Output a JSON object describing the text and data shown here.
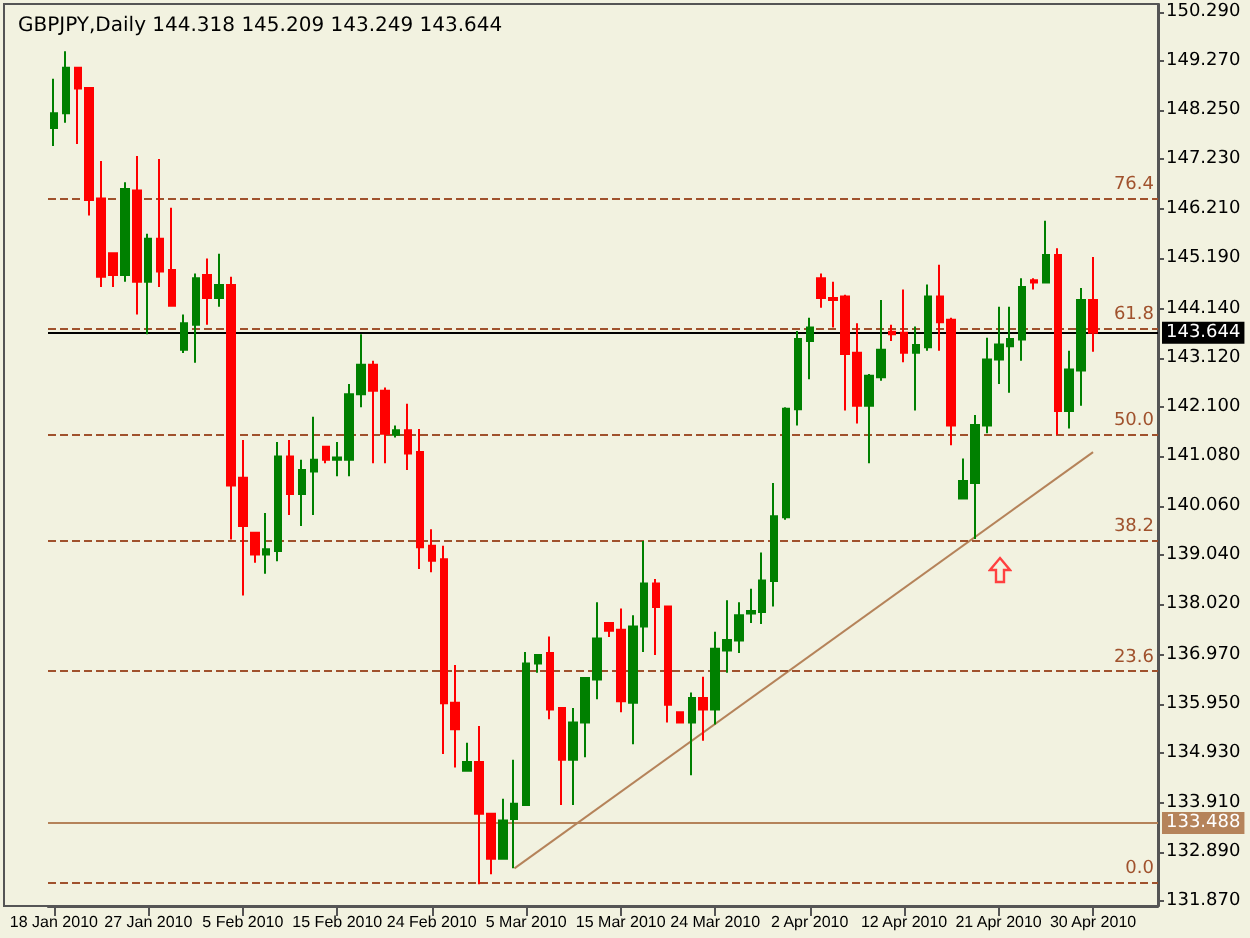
{
  "chart_data": {
    "type": "candlestick",
    "title": "GBPJPY,Daily 144.318 145.209 143.249 143.644",
    "categories": [
      "18 Jan 2010",
      null,
      null,
      null,
      null,
      null,
      null,
      null,
      "27 Jan 2010",
      null,
      null,
      null,
      null,
      null,
      null,
      null,
      "5 Feb 2010",
      null,
      null,
      null,
      null,
      null,
      null,
      null,
      "15 Feb 2010",
      null,
      null,
      null,
      null,
      null,
      null,
      null,
      "24 Feb 2010",
      null,
      null,
      null,
      null,
      null,
      null,
      null,
      "5 Mar 2010",
      null,
      null,
      null,
      null,
      null,
      null,
      null,
      "15 Mar 2010",
      null,
      null,
      null,
      null,
      null,
      null,
      null,
      "24 Mar 2010",
      null,
      null,
      null,
      null,
      null,
      null,
      null,
      "2 Apr 2010",
      null,
      null,
      null,
      null,
      null,
      null,
      null,
      "12 Apr 2010",
      null,
      null,
      null,
      null,
      null,
      null,
      null,
      "21 Apr 2010",
      null,
      null,
      null,
      null,
      null,
      null,
      null,
      "30 Apr 2010"
    ],
    "ohlc": [
      [
        147.88,
        148.9,
        147.51,
        148.19
      ],
      [
        148.19,
        149.47,
        147.99,
        149.13
      ],
      [
        149.13,
        149.13,
        147.55,
        148.7
      ],
      [
        148.71,
        148.71,
        146.07,
        146.39
      ],
      [
        146.42,
        147.2,
        144.59,
        144.8
      ],
      [
        145.29,
        145.29,
        144.59,
        144.84
      ],
      [
        144.84,
        146.76,
        144.7,
        146.62
      ],
      [
        146.59,
        147.3,
        144.02,
        144.7
      ],
      [
        144.7,
        145.69,
        143.61,
        145.59
      ],
      [
        145.59,
        147.24,
        144.59,
        144.91
      ],
      [
        144.94,
        146.23,
        144.2,
        144.2
      ],
      [
        143.29,
        144.02,
        143.22,
        143.84
      ],
      [
        143.81,
        144.87,
        143.02,
        144.77
      ],
      [
        144.84,
        145.18,
        143.81,
        144.36
      ],
      [
        144.36,
        145.28,
        144.18,
        144.63
      ],
      [
        144.63,
        144.8,
        139.36,
        140.48
      ],
      [
        140.64,
        141.42,
        138.2,
        139.64
      ],
      [
        139.5,
        139.5,
        138.88,
        139.05
      ],
      [
        139.05,
        139.91,
        138.65,
        139.16
      ],
      [
        139.12,
        141.38,
        138.91,
        141.08
      ],
      [
        141.08,
        141.42,
        139.87,
        140.3
      ],
      [
        140.3,
        141.01,
        139.64,
        140.8
      ],
      [
        140.77,
        141.9,
        139.87,
        141.01
      ],
      [
        141.28,
        141.28,
        140.94,
        141.01
      ],
      [
        141.01,
        141.38,
        140.67,
        141.06
      ],
      [
        141.01,
        142.58,
        140.67,
        142.37
      ],
      [
        142.37,
        143.61,
        142.1,
        142.98
      ],
      [
        142.98,
        143.06,
        140.94,
        142.44
      ],
      [
        142.44,
        142.51,
        140.94,
        141.55
      ],
      [
        141.53,
        141.72,
        141.47,
        141.62
      ],
      [
        141.62,
        142.17,
        140.8,
        141.14
      ],
      [
        141.17,
        141.65,
        138.75,
        139.2
      ],
      [
        139.23,
        139.57,
        138.68,
        138.92
      ],
      [
        138.95,
        139.23,
        134.92,
        135.97
      ],
      [
        135.98,
        136.76,
        134.64,
        135.43
      ],
      [
        134.57,
        135.15,
        134.55,
        134.75
      ],
      [
        134.75,
        135.5,
        132.22,
        133.68
      ],
      [
        133.68,
        133.68,
        132.43,
        132.75
      ],
      [
        132.75,
        133.99,
        132.75,
        133.54
      ],
      [
        133.57,
        134.8,
        132.55,
        133.89
      ],
      [
        133.86,
        137.03,
        133.85,
        136.79
      ],
      [
        136.79,
        136.97,
        136.6,
        136.97
      ],
      [
        137.01,
        137.35,
        135.64,
        135.84
      ],
      [
        135.87,
        135.87,
        133.86,
        134.8
      ],
      [
        134.8,
        135.87,
        133.86,
        135.57
      ],
      [
        135.57,
        136.49,
        134.85,
        136.49
      ],
      [
        136.46,
        138.06,
        136.05,
        137.31
      ],
      [
        137.63,
        137.63,
        137.34,
        137.47
      ],
      [
        137.49,
        137.93,
        135.78,
        136.01
      ],
      [
        135.98,
        137.79,
        135.12,
        137.56
      ],
      [
        137.56,
        139.33,
        137.03,
        138.45
      ],
      [
        138.45,
        138.54,
        136.97,
        137.96
      ],
      [
        137.97,
        137.97,
        135.57,
        135.94
      ],
      [
        135.78,
        135.78,
        135.57,
        135.57
      ],
      [
        135.57,
        136.19,
        134.48,
        136.08
      ],
      [
        136.08,
        136.52,
        135.19,
        135.84
      ],
      [
        135.84,
        137.45,
        135.53,
        137.1
      ],
      [
        137.06,
        138.1,
        136.6,
        137.28
      ],
      [
        137.27,
        138.06,
        137.01,
        137.79
      ],
      [
        137.83,
        138.34,
        137.63,
        137.88
      ],
      [
        137.86,
        139.09,
        137.61,
        138.51
      ],
      [
        138.5,
        140.53,
        137.97,
        139.84
      ],
      [
        139.82,
        142.1,
        139.77,
        142.07
      ],
      [
        142.06,
        143.68,
        141.72,
        143.51
      ],
      [
        143.47,
        143.95,
        142.68,
        143.75
      ],
      [
        144.77,
        144.87,
        144.16,
        144.36
      ],
      [
        144.36,
        144.7,
        143.75,
        144.32
      ],
      [
        144.39,
        144.43,
        142.03,
        143.2
      ],
      [
        143.23,
        143.84,
        141.76,
        142.13
      ],
      [
        142.13,
        142.79,
        140.94,
        142.75
      ],
      [
        142.72,
        144.32,
        142.65,
        143.29
      ],
      [
        143.66,
        143.81,
        143.47,
        143.61
      ],
      [
        143.64,
        144.54,
        143.03,
        143.23
      ],
      [
        143.23,
        143.77,
        142.03,
        143.39
      ],
      [
        143.34,
        144.64,
        143.27,
        144.39
      ],
      [
        144.39,
        145.05,
        143.27,
        143.86
      ],
      [
        143.91,
        143.95,
        141.31,
        141.72
      ],
      [
        140.21,
        141.04,
        140.21,
        140.57
      ],
      [
        140.53,
        141.94,
        139.37,
        141.73
      ],
      [
        141.72,
        143.54,
        141.56,
        143.09
      ],
      [
        143.09,
        144.18,
        142.58,
        143.4
      ],
      [
        143.36,
        144.18,
        142.4,
        143.51
      ],
      [
        143.5,
        144.77,
        143.06,
        144.59
      ],
      [
        144.73,
        144.77,
        144.54,
        144.68
      ],
      [
        144.68,
        145.96,
        144.68,
        145.25
      ],
      [
        145.25,
        145.39,
        141.53,
        142.02
      ],
      [
        142.02,
        143.27,
        141.66,
        142.88
      ],
      [
        142.86,
        144.57,
        142.13,
        144.32
      ],
      [
        144.318,
        145.209,
        143.249,
        143.644
      ]
    ],
    "colors": [
      "#008000",
      "#008000",
      "#ff0000",
      "#ff0000",
      "#ff0000",
      "#ff0000",
      "#008000",
      "#ff0000",
      "#008000",
      "#ff0000",
      "#ff0000",
      "#008000",
      "#008000",
      "#ff0000",
      "#008000",
      "#ff0000",
      "#ff0000",
      "#ff0000",
      "#008000",
      "#008000",
      "#ff0000",
      "#008000",
      "#008000",
      "#ff0000",
      "#008000",
      "#008000",
      "#008000",
      "#ff0000",
      "#ff0000",
      "#008000",
      "#ff0000",
      "#ff0000",
      "#ff0000",
      "#ff0000",
      "#ff0000",
      "#008000",
      "#ff0000",
      "#ff0000",
      "#008000",
      "#008000",
      "#008000",
      "#008000",
      "#ff0000",
      "#ff0000",
      "#008000",
      "#008000",
      "#008000",
      "#ff0000",
      "#ff0000",
      "#008000",
      "#008000",
      "#ff0000",
      "#ff0000",
      "#ff0000",
      "#008000",
      "#ff0000",
      "#008000",
      "#008000",
      "#008000",
      "#008000",
      "#008000",
      "#008000",
      "#008000",
      "#008000",
      "#008000",
      "#ff0000",
      "#ff0000",
      "#ff0000",
      "#ff0000",
      "#008000",
      "#008000",
      "#ff0000",
      "#ff0000",
      "#008000",
      "#008000",
      "#ff0000",
      "#ff0000",
      "#008000",
      "#008000",
      "#008000",
      "#008000",
      "#008000",
      "#008000",
      "#ff0000",
      "#008000",
      "#ff0000",
      "#008000",
      "#008000",
      "#ff0000"
    ],
    "series": [
      {
        "type": "line",
        "color": "#b5835a",
        "values": [
          null,
          null,
          null,
          null,
          null,
          null,
          null,
          null,
          null,
          null,
          null,
          null,
          null,
          null,
          null,
          null,
          null,
          null,
          null,
          null,
          null,
          null,
          null,
          null,
          null,
          null,
          null,
          null,
          null,
          null,
          null,
          null,
          null,
          null,
          null,
          null,
          null,
          null,
          null,
          132.55,
          null,
          null,
          null,
          null,
          null,
          null,
          null,
          null,
          null,
          null,
          null,
          null,
          null,
          null,
          null,
          null,
          null,
          null,
          null,
          null,
          null,
          null,
          null,
          null,
          null,
          null,
          null,
          null,
          null,
          null,
          null,
          null,
          null,
          null,
          null,
          null,
          null,
          null,
          null,
          null,
          null,
          null,
          null,
          null,
          null,
          null,
          null,
          null,
          141.17
        ]
      }
    ],
    "ylim": [
      131.77,
      150.45
    ],
    "yticks": [
      {
        "value": 131.87,
        "label": "131.870"
      },
      {
        "value": 132.89,
        "label": "132.890"
      },
      {
        "value": 133.91,
        "label": "133.910"
      },
      {
        "value": 134.93,
        "label": "134.930"
      },
      {
        "value": 135.95,
        "label": "135.950"
      },
      {
        "value": 136.97,
        "label": "136.970"
      },
      {
        "value": 138.02,
        "label": "138.020"
      },
      {
        "value": 139.04,
        "label": "139.040"
      },
      {
        "value": 140.06,
        "label": "140.060"
      },
      {
        "value": 141.08,
        "label": "141.080"
      },
      {
        "value": 142.1,
        "label": "142.100"
      },
      {
        "value": 143.12,
        "label": "143.120"
      },
      {
        "value": 144.14,
        "label": "144.140"
      },
      {
        "value": 145.19,
        "label": "145.190"
      },
      {
        "value": 146.21,
        "label": "146.210"
      },
      {
        "value": 147.23,
        "label": "147.230"
      },
      {
        "value": 148.25,
        "label": "148.250"
      },
      {
        "value": 149.27,
        "label": "149.270"
      },
      {
        "value": 150.29,
        "label": "150.290"
      }
    ],
    "annotations": [
      "0.0",
      "23.6",
      "38.2",
      "50.0",
      "61.8",
      "76.4"
    ],
    "ref_lines": [
      {
        "axis": "y",
        "value": 132.26,
        "color": "#a0522d",
        "line_style": "dashed"
      },
      {
        "axis": "y",
        "value": 136.64,
        "color": "#a0522d",
        "line_style": "dashed"
      },
      {
        "axis": "y",
        "value": 139.35,
        "color": "#a0522d",
        "line_style": "dashed"
      },
      {
        "axis": "y",
        "value": 141.54,
        "color": "#a0522d",
        "line_style": "dashed"
      },
      {
        "axis": "y",
        "value": 143.73,
        "color": "#a0522d",
        "line_style": "dashed"
      },
      {
        "axis": "y",
        "value": 146.44,
        "color": "#a0522d",
        "line_style": "dashed"
      },
      {
        "axis": "y",
        "value": 133.488,
        "label": "133.488",
        "color": "#b5835a",
        "line_style": "solid"
      },
      {
        "axis": "y",
        "value": 143.644,
        "label": "143.644",
        "color": "#000000",
        "line_style": "solid"
      }
    ],
    "grid": false
  }
}
